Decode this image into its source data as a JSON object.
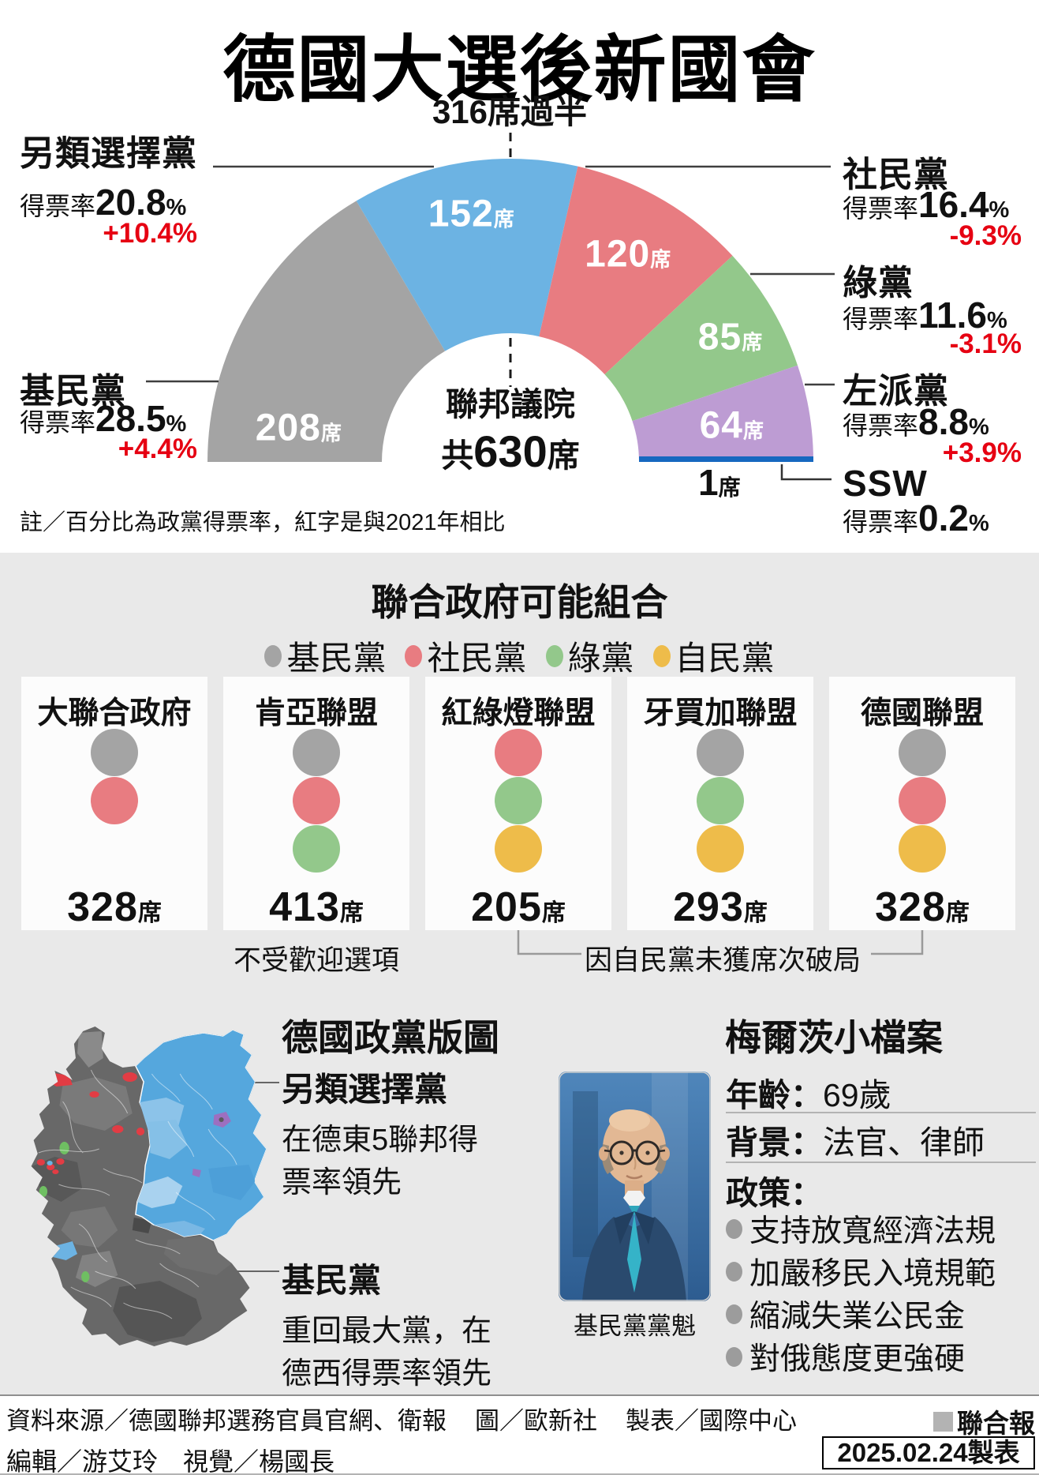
{
  "page": {
    "title": "德國大選後新國會"
  },
  "colors": {
    "panel_bg": "#e9e9e9",
    "card_bg": "#fcfcfc",
    "change_red": "#e60012",
    "cdu_gray": "#a4a4a4",
    "afd_blue": "#6cb3e3",
    "spd_red": "#e87c81",
    "green": "#93c88b",
    "left_purple": "#bd9cd3",
    "ssw_blue": "#1668c0",
    "fdp_yellow": "#eebc4a"
  },
  "parliament": {
    "majority_label": "316席過半",
    "center_line1": "聯邦議院",
    "center_prefix": "共",
    "center_total": "630",
    "center_unit": "席",
    "seat_unit": "席",
    "rate_label": "得票率",
    "note": "註／百分比為政黨得票率，紅字是與2021年相比",
    "parties": [
      {
        "name": "基民黨",
        "seats": "208",
        "share": "28.5",
        "share_unit": "%",
        "change": "+4.4%",
        "color": "#a4a4a4"
      },
      {
        "name": "另類選擇黨",
        "seats": "152",
        "share": "20.8",
        "share_unit": "%",
        "change": "+10.4%",
        "color": "#6cb3e3"
      },
      {
        "name": "社民黨",
        "seats": "120",
        "share": "16.4",
        "share_unit": "%",
        "change": "-9.3%",
        "color": "#e87c81"
      },
      {
        "name": "綠黨",
        "seats": "85",
        "share": "11.6",
        "share_unit": "%",
        "change": "-3.1%",
        "color": "#93c88b"
      },
      {
        "name": "左派黨",
        "seats": "64",
        "share": "8.8",
        "share_unit": "%",
        "change": "+3.9%",
        "color": "#bd9cd3"
      },
      {
        "name": "SSW",
        "seats": "1",
        "share": "0.2",
        "share_unit": "%",
        "change": "",
        "color": "#1668c0"
      }
    ]
  },
  "coalitions": {
    "title": "聯合政府可能組合",
    "seat_unit": "席",
    "legend": [
      {
        "label": "基民黨",
        "color": "#a4a4a4"
      },
      {
        "label": "社民黨",
        "color": "#e87c81"
      },
      {
        "label": "綠黨",
        "color": "#93c88b"
      },
      {
        "label": "自民黨",
        "color": "#eebc4a"
      }
    ],
    "cards": [
      {
        "name": "大聯合政府",
        "seats": "328",
        "dot_colors": [
          "#a4a4a4",
          "#e87c81"
        ]
      },
      {
        "name": "肯亞聯盟",
        "seats": "413",
        "dot_colors": [
          "#a4a4a4",
          "#e87c81",
          "#93c88b"
        ]
      },
      {
        "name": "紅綠燈聯盟",
        "seats": "205",
        "dot_colors": [
          "#e87c81",
          "#93c88b",
          "#eebc4a"
        ]
      },
      {
        "name": "牙買加聯盟",
        "seats": "293",
        "dot_colors": [
          "#a4a4a4",
          "#93c88b",
          "#eebc4a"
        ]
      },
      {
        "name": "德國聯盟",
        "seats": "328",
        "dot_colors": [
          "#a4a4a4",
          "#e87c81",
          "#eebc4a"
        ]
      }
    ],
    "note_unpopular": "不受歡迎選項",
    "note_fdp": "因自民黨未獲席次破局"
  },
  "map_section": {
    "title": "德國政黨版圖",
    "annotations": [
      {
        "party": "另類選擇黨",
        "lines": [
          "在德東5聯邦得",
          "票率領先"
        ]
      },
      {
        "party": "基民黨",
        "lines": [
          "重回最大黨，在",
          "德西得票率領先"
        ]
      }
    ]
  },
  "profile": {
    "title": "梅爾茨小檔案",
    "photo_caption": "基民黨黨魁",
    "rows": [
      {
        "label": "年齡：",
        "value": "69歲"
      },
      {
        "label": "背景：",
        "value": "法官、律師"
      },
      {
        "label": "政策：",
        "value": ""
      }
    ],
    "policies": [
      "支持放寬經濟法規",
      "加嚴移民入境規範",
      "縮減失業公民金",
      "對俄態度更強硬"
    ]
  },
  "footer": {
    "source": "資料來源／德國聯邦選務官員官網、衛報",
    "photo_credit": "圖／歐新社",
    "table_credit": "製表／國際中心",
    "brand": "聯合報",
    "credits2": "編輯／游艾玲　視覺／楊國長",
    "date_box": "2025.02.24製表"
  },
  "chart_data": [
    {
      "type": "pie",
      "subtype": "half-donut-parliament",
      "title": "聯邦議院共630席",
      "categories": [
        "基民黨",
        "另類選擇黨",
        "社民黨",
        "綠黨",
        "左派黨",
        "SSW"
      ],
      "values": [
        208,
        152,
        120,
        85,
        64,
        1
      ],
      "vote_share_pct": [
        28.5,
        20.8,
        16.4,
        11.6,
        8.8,
        0.2
      ],
      "change_vs_2021_pct": [
        4.4,
        10.4,
        -9.3,
        -3.1,
        3.9,
        null
      ],
      "colors": [
        "#a4a4a4",
        "#6cb3e3",
        "#e87c81",
        "#93c88b",
        "#bd9cd3",
        "#1668c0"
      ],
      "total_seats": 630,
      "majority_seats": 316,
      "annotations": [
        "316席過半",
        "1席"
      ],
      "legend_position": "sides"
    },
    {
      "type": "table",
      "title": "聯合政府可能組合",
      "categories": [
        "大聯合政府",
        "肯亞聯盟",
        "紅綠燈聯盟",
        "牙買加聯盟",
        "德國聯盟"
      ],
      "values": [
        328,
        413,
        205,
        293,
        328
      ],
      "composition": [
        [
          "基民黨",
          "社民黨"
        ],
        [
          "基民黨",
          "社民黨",
          "綠黨"
        ],
        [
          "社民黨",
          "綠黨",
          "自民黨"
        ],
        [
          "基民黨",
          "綠黨",
          "自民黨"
        ],
        [
          "基民黨",
          "社民黨",
          "自民黨"
        ]
      ]
    }
  ]
}
